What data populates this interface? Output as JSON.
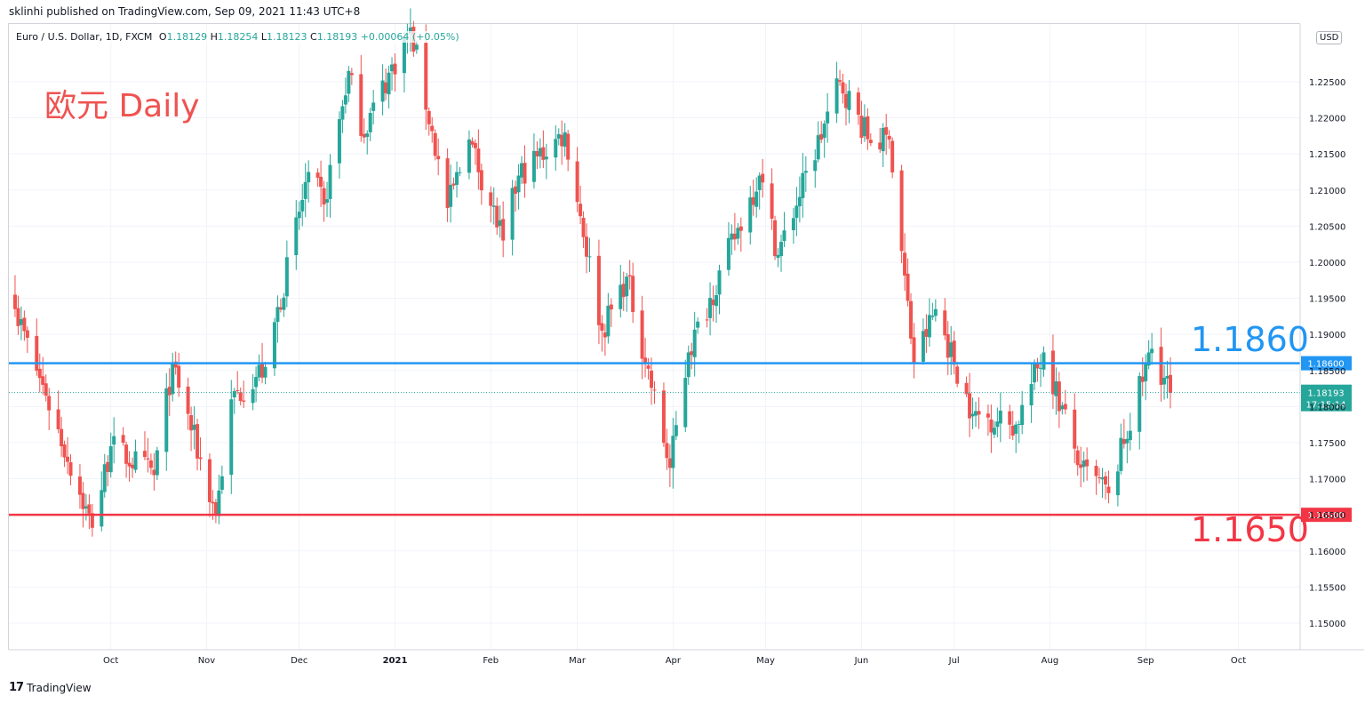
{
  "header": {
    "credit": "sklinhi published on TradingView.com, Sep 09, 2021 11:43 UTC+8",
    "symbol": "Euro / U.S. Dollar, 1D, FXCM",
    "o_label": "O",
    "o_value": "1.18129",
    "h_label": "H",
    "h_value": "1.18254",
    "l_label": "L",
    "l_value": "1.18123",
    "c_label": "C",
    "c_value": "1.18193",
    "change": "+0.00064 (+0.05%)"
  },
  "annotation": {
    "title": "欧元 Daily"
  },
  "currency_badge": "USD",
  "footer": {
    "logo_mark": "17",
    "brand": "TradingView"
  },
  "colors": {
    "up": "#26a69a",
    "down": "#ef5350",
    "support": "#f23645",
    "resistance": "#2196f3",
    "grid": "#f0f3fa",
    "axis_text": "#131722"
  },
  "chart_data": {
    "type": "candlestick",
    "title": "Euro / U.S. Dollar, 1D, FXCM",
    "y_range": [
      1.1463,
      1.233
    ],
    "y_ticks": [
      "1.15000",
      "1.15500",
      "1.16000",
      "1.16500",
      "1.17000",
      "1.17500",
      "1.18000",
      "1.18500",
      "1.19000",
      "1.19500",
      "1.20000",
      "1.20500",
      "1.21000",
      "1.21500",
      "1.22000",
      "1.22500"
    ],
    "x_labels": [
      {
        "label": "Oct",
        "date": "2020-10-01"
      },
      {
        "label": "Nov",
        "date": "2020-11-01"
      },
      {
        "label": "Dec",
        "date": "2020-12-01"
      },
      {
        "label": "2021",
        "date": "2021-01-01",
        "bold": true
      },
      {
        "label": "Feb",
        "date": "2021-02-01"
      },
      {
        "label": "Mar",
        "date": "2021-03-01"
      },
      {
        "label": "Apr",
        "date": "2021-04-01"
      },
      {
        "label": "May",
        "date": "2021-05-01"
      },
      {
        "label": "Jun",
        "date": "2021-06-01"
      },
      {
        "label": "Jul",
        "date": "2021-07-01"
      },
      {
        "label": "Aug",
        "date": "2021-08-01"
      },
      {
        "label": "Sep",
        "date": "2021-09-01"
      },
      {
        "label": "Oct",
        "date": "2021-10-01"
      }
    ],
    "x_range": [
      "2020-08-29",
      "2021-10-21"
    ],
    "horizontal_lines": [
      {
        "value": 1.186,
        "label": "1.1860",
        "tag": "1.18600",
        "color": "#2196f3"
      },
      {
        "value": 1.165,
        "label": "1.1650",
        "tag": "1.16500",
        "color": "#f23645"
      }
    ],
    "last_price": {
      "value": 1.18193,
      "tag": "1.18193",
      "countdown": "17:15:14"
    },
    "anchors": [
      {
        "date": "2020-08-31",
        "close": 1.1935
      },
      {
        "date": "2020-09-10",
        "close": 1.1815
      },
      {
        "date": "2020-09-25",
        "close": 1.1632
      },
      {
        "date": "2020-10-01",
        "close": 1.1745
      },
      {
        "date": "2020-10-15",
        "close": 1.1705
      },
      {
        "date": "2020-10-21",
        "close": 1.186
      },
      {
        "date": "2020-11-04",
        "close": 1.165
      },
      {
        "date": "2020-11-09",
        "close": 1.181
      },
      {
        "date": "2020-11-20",
        "close": 1.1855
      },
      {
        "date": "2020-12-04",
        "close": 1.2125
      },
      {
        "date": "2020-12-09",
        "close": 1.208
      },
      {
        "date": "2020-12-17",
        "close": 1.2265
      },
      {
        "date": "2020-12-21",
        "close": 1.2175
      },
      {
        "date": "2021-01-06",
        "close": 1.2325
      },
      {
        "date": "2021-01-18",
        "close": 1.2075
      },
      {
        "date": "2021-01-25",
        "close": 1.217
      },
      {
        "date": "2021-02-05",
        "close": 1.203
      },
      {
        "date": "2021-02-10",
        "close": 1.212
      },
      {
        "date": "2021-02-25",
        "close": 1.218
      },
      {
        "date": "2021-03-09",
        "close": 1.1905
      },
      {
        "date": "2021-03-17",
        "close": 1.198
      },
      {
        "date": "2021-03-31",
        "close": 1.1715
      },
      {
        "date": "2021-04-06",
        "close": 1.1875
      },
      {
        "date": "2021-04-29",
        "close": 1.212
      },
      {
        "date": "2021-05-05",
        "close": 1.201
      },
      {
        "date": "2021-05-25",
        "close": 1.225
      },
      {
        "date": "2021-06-04",
        "close": 1.2165
      },
      {
        "date": "2021-06-10",
        "close": 1.217
      },
      {
        "date": "2021-06-18",
        "close": 1.186
      },
      {
        "date": "2021-06-25",
        "close": 1.1935
      },
      {
        "date": "2021-07-07",
        "close": 1.179
      },
      {
        "date": "2021-07-21",
        "close": 1.1775
      },
      {
        "date": "2021-07-30",
        "close": 1.1875
      },
      {
        "date": "2021-08-11",
        "close": 1.1715
      },
      {
        "date": "2021-08-20",
        "close": 1.168
      },
      {
        "date": "2021-09-03",
        "close": 1.188
      },
      {
        "date": "2021-09-09",
        "close": 1.1819
      }
    ]
  }
}
